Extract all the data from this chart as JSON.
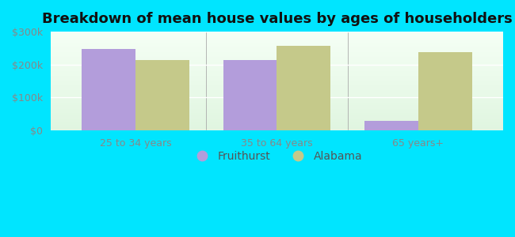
{
  "title": "Breakdown of mean house values by ages of householders",
  "categories": [
    "25 to 34 years",
    "35 to 64 years",
    "65 years+"
  ],
  "fruithurst_values": [
    248000,
    213000,
    28000
  ],
  "alabama_values": [
    213000,
    258000,
    238000
  ],
  "fruithurst_color": "#b39ddb",
  "alabama_color": "#c5c98a",
  "ylim": [
    0,
    300000
  ],
  "yticks": [
    0,
    100000,
    200000,
    300000
  ],
  "ytick_labels": [
    "$0",
    "$100k",
    "$200k",
    "$300k"
  ],
  "bar_width": 0.38,
  "figure_bg": "#00e5ff",
  "plot_bg_top": "#f5fff5",
  "plot_bg_bottom": "#e0f5e0",
  "legend_labels": [
    "Fruithurst",
    "Alabama"
  ],
  "title_fontsize": 13,
  "tick_fontsize": 9,
  "legend_fontsize": 10,
  "figsize": [
    6.5,
    3.0
  ],
  "dpi": 100
}
